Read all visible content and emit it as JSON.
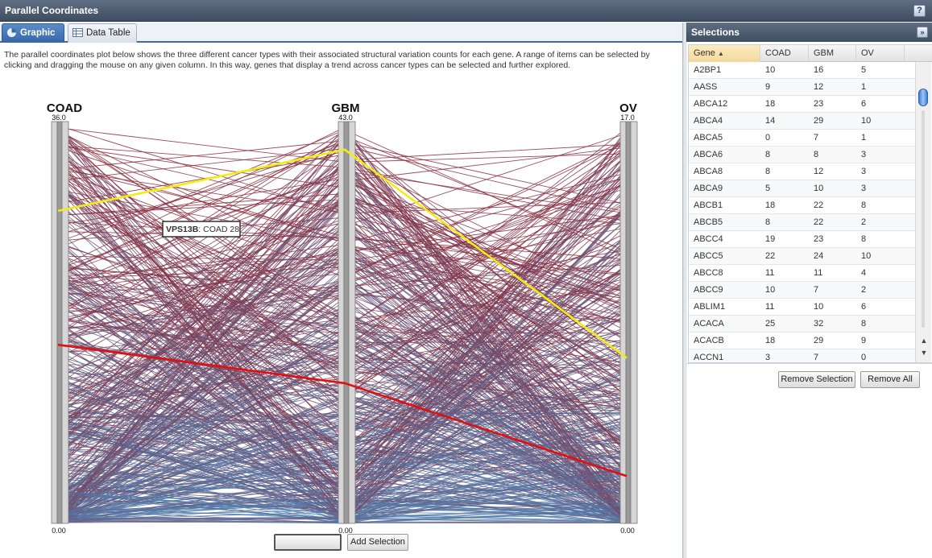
{
  "window": {
    "title": "Parallel Coordinates"
  },
  "tabs": [
    {
      "label": "Graphic",
      "active": true
    },
    {
      "label": "Data Table",
      "active": false
    }
  ],
  "description": "The parallel coordinates plot below shows the three different cancer types with their associated structural variation counts for each gene. A range of items can be selected by clicking and dragging the mouse on any given column. In this way, genes that display a trend across cancer types can be selected and further explored.",
  "plot": {
    "axes": [
      {
        "name": "COAD",
        "max_label": "36.0",
        "min_label": "0.00",
        "max": 36
      },
      {
        "name": "GBM",
        "max_label": "43.0",
        "min_label": "0.00",
        "max": 43
      },
      {
        "name": "OV",
        "max_label": "17.0",
        "min_label": "0.00",
        "max": 17
      }
    ],
    "tooltip": {
      "gene": "VPS13B",
      "text": ": COAD 28"
    },
    "highlight_yellow": {
      "COAD": 28,
      "GBM": 40,
      "OV": 7
    },
    "highlight_red": {
      "COAD": 16,
      "GBM": 15,
      "OV": 2
    },
    "colors": {
      "high": "#8c2a3b",
      "low": "#4a84b8",
      "yellow": "#f2ec14",
      "red": "#e01010"
    }
  },
  "buttons": {
    "blank_label": "",
    "add_selection": "Add Selection",
    "remove_selection": "Remove Selection",
    "remove_all": "Remove All"
  },
  "selections": {
    "title": "Selections",
    "columns": [
      "Gene",
      "COAD",
      "GBM",
      "OV"
    ],
    "sort_indicator": "▲",
    "rows": [
      [
        "A2BP1",
        "10",
        "16",
        "5"
      ],
      [
        "AASS",
        "9",
        "12",
        "1"
      ],
      [
        "ABCA12",
        "18",
        "23",
        "6"
      ],
      [
        "ABCA4",
        "14",
        "29",
        "10"
      ],
      [
        "ABCA5",
        "0",
        "7",
        "1"
      ],
      [
        "ABCA6",
        "8",
        "8",
        "3"
      ],
      [
        "ABCA8",
        "8",
        "12",
        "3"
      ],
      [
        "ABCA9",
        "5",
        "10",
        "3"
      ],
      [
        "ABCB1",
        "18",
        "22",
        "8"
      ],
      [
        "ABCB5",
        "8",
        "22",
        "2"
      ],
      [
        "ABCC4",
        "19",
        "23",
        "8"
      ],
      [
        "ABCC5",
        "22",
        "24",
        "10"
      ],
      [
        "ABCC8",
        "11",
        "11",
        "4"
      ],
      [
        "ABCC9",
        "10",
        "7",
        "2"
      ],
      [
        "ABLIM1",
        "11",
        "10",
        "6"
      ],
      [
        "ACACA",
        "25",
        "32",
        "8"
      ],
      [
        "ACACB",
        "18",
        "29",
        "9"
      ],
      [
        "ACCN1",
        "3",
        "7",
        "0"
      ]
    ]
  }
}
